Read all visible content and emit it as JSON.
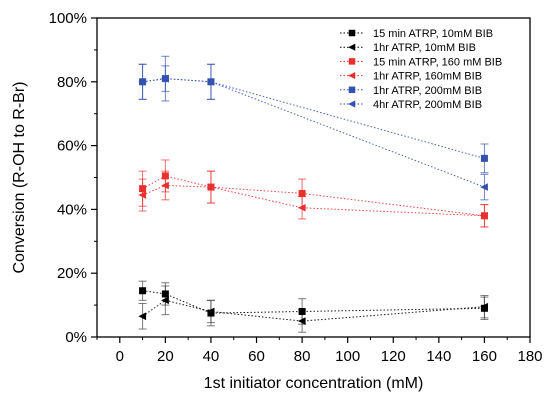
{
  "chart_data": {
    "type": "scatter",
    "title": "",
    "xlabel": "1st initiator concentration (mM)",
    "ylabel": "Conversion (R-OH to R-Br)",
    "xlim": [
      -10,
      180
    ],
    "ylim": [
      0,
      100
    ],
    "xticks": [
      0,
      20,
      40,
      60,
      80,
      100,
      120,
      140,
      160,
      180
    ],
    "yticks": [
      0,
      20,
      40,
      60,
      80,
      100
    ],
    "xtick_labels": [
      "0",
      "20",
      "40",
      "60",
      "80",
      "100",
      "120",
      "140",
      "160",
      "180"
    ],
    "ytick_labels": [
      "0%",
      "20%",
      "40%",
      "60%",
      "80%",
      "100%"
    ],
    "grid": false,
    "legend_position": "top-right",
    "line_style": "dotted",
    "series": [
      {
        "name": "15 min ATRP, 10mM BIB",
        "color": "#000000",
        "marker": "square",
        "x": [
          10,
          20,
          40,
          80,
          160
        ],
        "y": [
          14.5,
          13.5,
          7.5,
          8,
          9
        ],
        "err": [
          3,
          3.5,
          4,
          4,
          3.5
        ]
      },
      {
        "name": "1hr ATRP, 10mM BIB",
        "color": "#000000",
        "marker": "triangle-left",
        "x": [
          10,
          20,
          40,
          80,
          160
        ],
        "y": [
          6.5,
          11.5,
          8,
          5,
          9.5
        ],
        "err": [
          4,
          4.5,
          3.5,
          3.5,
          3.5
        ]
      },
      {
        "name": "15 min ATRP, 160 mM BIB",
        "color": "#e8312f",
        "marker": "square",
        "x": [
          10,
          20,
          40,
          80,
          160
        ],
        "y": [
          46.5,
          50.5,
          47,
          45,
          38
        ],
        "err": [
          5.5,
          5,
          5,
          4.5,
          3.5
        ]
      },
      {
        "name": "1hr ATRP, 160mM BIB",
        "color": "#e8312f",
        "marker": "triangle-left",
        "x": [
          10,
          20,
          40,
          80,
          160
        ],
        "y": [
          44.5,
          47.5,
          47,
          40.5,
          38
        ],
        "err": [
          5,
          4.5,
          5,
          3.5,
          3.5
        ]
      },
      {
        "name": "1hr ATRP, 200mM BIB",
        "color": "#3352b0",
        "marker": "square",
        "x": [
          10,
          20,
          40,
          160
        ],
        "y": [
          80,
          81,
          80,
          56
        ],
        "err": [
          5.5,
          7,
          5.5,
          4.5
        ]
      },
      {
        "name": "4hr ATRP, 200mM BIB",
        "color": "#3352b0",
        "marker": "triangle-left",
        "x": [
          10,
          20,
          40,
          160
        ],
        "y": [
          80,
          81,
          80,
          47
        ],
        "err": [
          5.5,
          4,
          5.5,
          4
        ]
      }
    ]
  }
}
